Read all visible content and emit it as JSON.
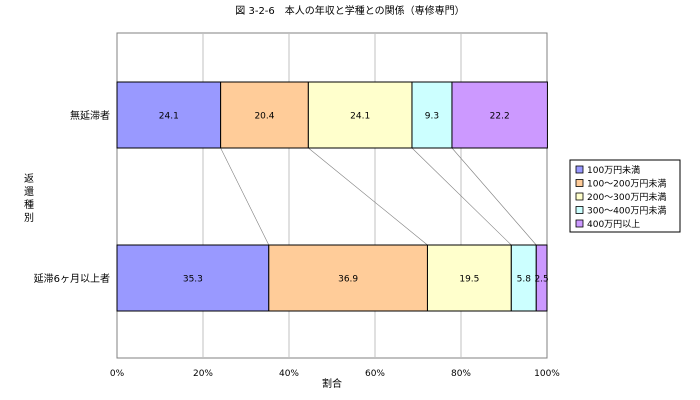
{
  "chart_data": {
    "type": "bar",
    "orientation": "horizontal",
    "stacked": "percent",
    "title": "図 3-2-6　本人の年収と学種との関係（専修専門）",
    "xlabel": "割合",
    "ylabel": "返還種別",
    "categories": [
      "無延滞者",
      "延滞6ヶ月以上者"
    ],
    "series": [
      {
        "name": "100万円未満",
        "color": "#9999ff",
        "values": [
          24.1,
          35.3
        ]
      },
      {
        "name": "100～200万円未満",
        "color": "#ffcc99",
        "values": [
          20.4,
          36.9
        ]
      },
      {
        "name": "200～300万円未満",
        "color": "#ffffcc",
        "values": [
          24.1,
          19.5
        ]
      },
      {
        "name": "300～400万円未満",
        "color": "#ccffff",
        "values": [
          9.3,
          5.8
        ]
      },
      {
        "name": "400万円以上",
        "color": "#cc99ff",
        "values": [
          22.2,
          2.5
        ]
      }
    ],
    "xticks": [
      "0%",
      "20%",
      "40%",
      "60%",
      "80%",
      "100%"
    ],
    "xlim": [
      0,
      100
    ],
    "grid": true,
    "legend": "right",
    "series_lines": true
  }
}
